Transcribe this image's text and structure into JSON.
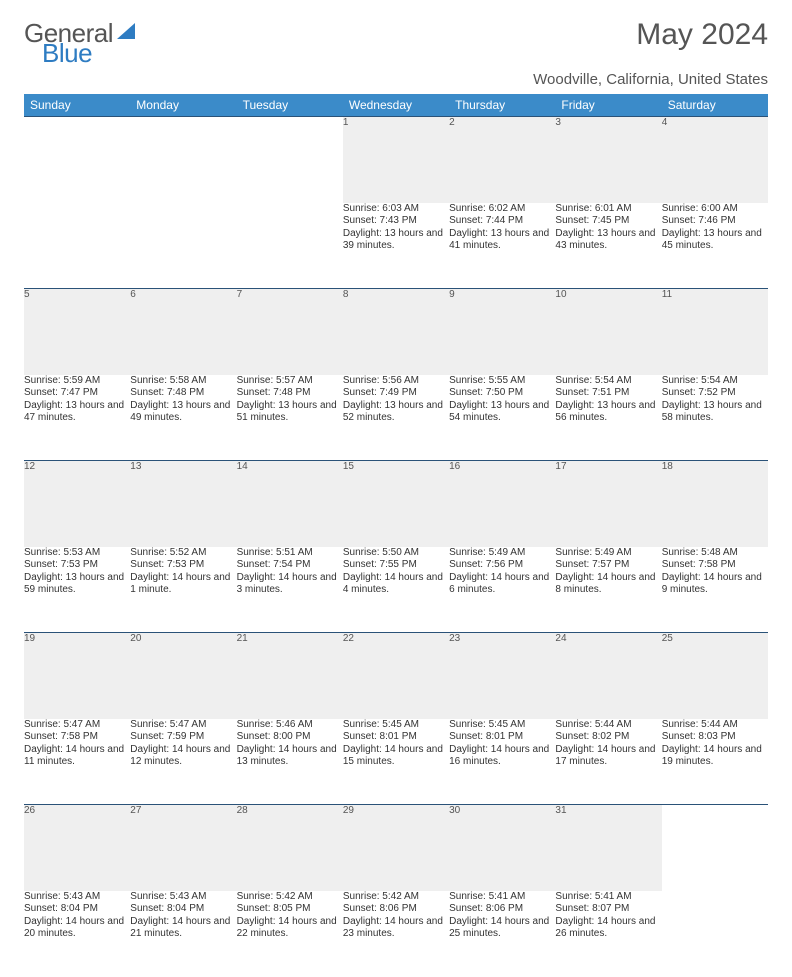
{
  "brand": {
    "part1": "General",
    "part2": "Blue"
  },
  "title": "May 2024",
  "location": "Woodville, California, United States",
  "colors": {
    "header_bg": "#3b8bc9",
    "header_text": "#ffffff",
    "daynum_bg": "#efefef",
    "rule": "#2a5278",
    "text": "#333333",
    "brand_gray": "#555555",
    "brand_blue": "#2e7cc2"
  },
  "weekdays": [
    "Sunday",
    "Monday",
    "Tuesday",
    "Wednesday",
    "Thursday",
    "Friday",
    "Saturday"
  ],
  "weeks": [
    [
      null,
      null,
      null,
      {
        "n": "1",
        "sr": "6:03 AM",
        "ss": "7:43 PM",
        "dl": "13 hours and 39 minutes."
      },
      {
        "n": "2",
        "sr": "6:02 AM",
        "ss": "7:44 PM",
        "dl": "13 hours and 41 minutes."
      },
      {
        "n": "3",
        "sr": "6:01 AM",
        "ss": "7:45 PM",
        "dl": "13 hours and 43 minutes."
      },
      {
        "n": "4",
        "sr": "6:00 AM",
        "ss": "7:46 PM",
        "dl": "13 hours and 45 minutes."
      }
    ],
    [
      {
        "n": "5",
        "sr": "5:59 AM",
        "ss": "7:47 PM",
        "dl": "13 hours and 47 minutes."
      },
      {
        "n": "6",
        "sr": "5:58 AM",
        "ss": "7:48 PM",
        "dl": "13 hours and 49 minutes."
      },
      {
        "n": "7",
        "sr": "5:57 AM",
        "ss": "7:48 PM",
        "dl": "13 hours and 51 minutes."
      },
      {
        "n": "8",
        "sr": "5:56 AM",
        "ss": "7:49 PM",
        "dl": "13 hours and 52 minutes."
      },
      {
        "n": "9",
        "sr": "5:55 AM",
        "ss": "7:50 PM",
        "dl": "13 hours and 54 minutes."
      },
      {
        "n": "10",
        "sr": "5:54 AM",
        "ss": "7:51 PM",
        "dl": "13 hours and 56 minutes."
      },
      {
        "n": "11",
        "sr": "5:54 AM",
        "ss": "7:52 PM",
        "dl": "13 hours and 58 minutes."
      }
    ],
    [
      {
        "n": "12",
        "sr": "5:53 AM",
        "ss": "7:53 PM",
        "dl": "13 hours and 59 minutes."
      },
      {
        "n": "13",
        "sr": "5:52 AM",
        "ss": "7:53 PM",
        "dl": "14 hours and 1 minute."
      },
      {
        "n": "14",
        "sr": "5:51 AM",
        "ss": "7:54 PM",
        "dl": "14 hours and 3 minutes."
      },
      {
        "n": "15",
        "sr": "5:50 AM",
        "ss": "7:55 PM",
        "dl": "14 hours and 4 minutes."
      },
      {
        "n": "16",
        "sr": "5:49 AM",
        "ss": "7:56 PM",
        "dl": "14 hours and 6 minutes."
      },
      {
        "n": "17",
        "sr": "5:49 AM",
        "ss": "7:57 PM",
        "dl": "14 hours and 8 minutes."
      },
      {
        "n": "18",
        "sr": "5:48 AM",
        "ss": "7:58 PM",
        "dl": "14 hours and 9 minutes."
      }
    ],
    [
      {
        "n": "19",
        "sr": "5:47 AM",
        "ss": "7:58 PM",
        "dl": "14 hours and 11 minutes."
      },
      {
        "n": "20",
        "sr": "5:47 AM",
        "ss": "7:59 PM",
        "dl": "14 hours and 12 minutes."
      },
      {
        "n": "21",
        "sr": "5:46 AM",
        "ss": "8:00 PM",
        "dl": "14 hours and 13 minutes."
      },
      {
        "n": "22",
        "sr": "5:45 AM",
        "ss": "8:01 PM",
        "dl": "14 hours and 15 minutes."
      },
      {
        "n": "23",
        "sr": "5:45 AM",
        "ss": "8:01 PM",
        "dl": "14 hours and 16 minutes."
      },
      {
        "n": "24",
        "sr": "5:44 AM",
        "ss": "8:02 PM",
        "dl": "14 hours and 17 minutes."
      },
      {
        "n": "25",
        "sr": "5:44 AM",
        "ss": "8:03 PM",
        "dl": "14 hours and 19 minutes."
      }
    ],
    [
      {
        "n": "26",
        "sr": "5:43 AM",
        "ss": "8:04 PM",
        "dl": "14 hours and 20 minutes."
      },
      {
        "n": "27",
        "sr": "5:43 AM",
        "ss": "8:04 PM",
        "dl": "14 hours and 21 minutes."
      },
      {
        "n": "28",
        "sr": "5:42 AM",
        "ss": "8:05 PM",
        "dl": "14 hours and 22 minutes."
      },
      {
        "n": "29",
        "sr": "5:42 AM",
        "ss": "8:06 PM",
        "dl": "14 hours and 23 minutes."
      },
      {
        "n": "30",
        "sr": "5:41 AM",
        "ss": "8:06 PM",
        "dl": "14 hours and 25 minutes."
      },
      {
        "n": "31",
        "sr": "5:41 AM",
        "ss": "8:07 PM",
        "dl": "14 hours and 26 minutes."
      },
      null
    ]
  ],
  "labels": {
    "sunrise": "Sunrise:",
    "sunset": "Sunset:",
    "daylight": "Daylight:"
  }
}
